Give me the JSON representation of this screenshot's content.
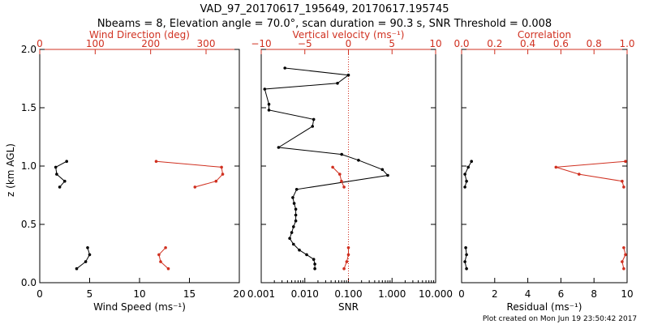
{
  "header": {
    "title": "VAD_97_20170617_195649, 20170617.195745",
    "subtitle": "Nbeams = 8, Elevation angle = 70.0°, scan duration = 90.3 s, SNR Threshold = 0.008"
  },
  "footer": {
    "note": "Plot created on Mon Jun 19 23:50:42 2017"
  },
  "colors": {
    "primary": "#000000",
    "secondary": "#d03020"
  },
  "chart_data": [
    {
      "type": "line",
      "bottom_axis": {
        "label": "Wind Speed (ms⁻¹)",
        "range": [
          0,
          20
        ],
        "ticks": [
          0,
          5,
          10,
          15,
          20
        ],
        "tick_labels": [
          "0",
          "5",
          "10",
          "15",
          "20"
        ]
      },
      "top_axis": {
        "label": "Wind Direction (deg)",
        "range": [
          0,
          360
        ],
        "ticks": [
          0,
          100,
          200,
          300
        ],
        "tick_labels": [
          "0",
          "100",
          "200",
          "300"
        ]
      },
      "y_axis": {
        "label": "z (km AGL)",
        "range": [
          0,
          2
        ],
        "ticks": [
          0,
          0.5,
          1.0,
          1.5,
          2.0
        ],
        "tick_labels": [
          "0.0",
          "0.5",
          "1.0",
          "1.5",
          "2.0"
        ]
      },
      "series": [
        {
          "axis": "bottom",
          "color": "#000000",
          "segments": [
            [
              [
                3.7,
                0.12
              ],
              [
                4.6,
                0.18
              ],
              [
                5.0,
                0.24
              ],
              [
                4.8,
                0.3
              ]
            ],
            [
              [
                2.0,
                0.82
              ],
              [
                2.5,
                0.87
              ],
              [
                1.7,
                0.93
              ],
              [
                1.6,
                0.99
              ],
              [
                2.7,
                1.04
              ]
            ]
          ]
        },
        {
          "axis": "top",
          "color": "#d03020",
          "segments": [
            [
              [
                232,
                0.12
              ],
              [
                218,
                0.18
              ],
              [
                215,
                0.24
              ],
              [
                227,
                0.3
              ]
            ],
            [
              [
                280,
                0.82
              ],
              [
                318,
                0.87
              ],
              [
                330,
                0.93
              ],
              [
                328,
                0.99
              ],
              [
                210,
                1.04
              ]
            ]
          ]
        }
      ]
    },
    {
      "type": "line",
      "bottom_axis": {
        "label": "SNR",
        "scale": "log",
        "range": [
          0.001,
          10
        ],
        "ticks": [
          0.001,
          0.01,
          0.1,
          1,
          10
        ],
        "tick_labels": [
          "0.001",
          "0.010",
          "0.100",
          "1.000",
          "10.000"
        ]
      },
      "top_axis": {
        "label": "Vertical velocity (ms⁻¹)",
        "range": [
          -10,
          10
        ],
        "ticks": [
          -10,
          -5,
          0,
          5,
          10
        ],
        "tick_labels": [
          "−10",
          "−5",
          "0",
          "5",
          "10"
        ]
      },
      "y_axis": {
        "range": [
          0,
          2
        ],
        "ticks": [
          0,
          0.5,
          1.0,
          1.5,
          2.0
        ]
      },
      "zero_line": {
        "axis": "top",
        "value": 0,
        "color": "#d03020",
        "style": "dotted"
      },
      "series": [
        {
          "axis": "bottom",
          "color": "#000000",
          "segments": [
            [
              [
                0.017,
                0.12
              ],
              [
                0.017,
                0.16
              ],
              [
                0.016,
                0.2
              ],
              [
                0.011,
                0.24
              ],
              [
                0.0075,
                0.28
              ],
              [
                0.0055,
                0.33
              ],
              [
                0.0045,
                0.38
              ],
              [
                0.005,
                0.43
              ],
              [
                0.0055,
                0.48
              ],
              [
                0.0062,
                0.53
              ],
              [
                0.0062,
                0.58
              ],
              [
                0.0062,
                0.63
              ],
              [
                0.0057,
                0.68
              ],
              [
                0.0053,
                0.73
              ],
              [
                0.0065,
                0.8
              ],
              [
                0.8,
                0.92
              ],
              [
                0.6,
                0.97
              ],
              [
                0.17,
                1.05
              ],
              [
                0.07,
                1.1
              ],
              [
                0.0025,
                1.16
              ],
              [
                0.015,
                1.34
              ],
              [
                0.016,
                1.4
              ],
              [
                0.0015,
                1.48
              ],
              [
                0.0015,
                1.53
              ],
              [
                0.0012,
                1.66
              ],
              [
                0.056,
                1.71
              ],
              [
                0.1,
                1.78
              ],
              [
                0.0035,
                1.84
              ]
            ]
          ]
        },
        {
          "axis": "top",
          "color": "#d03020",
          "segments": [
            [
              [
                -0.5,
                0.12
              ],
              [
                -0.2,
                0.18
              ],
              [
                0.0,
                0.24
              ],
              [
                0.0,
                0.3
              ]
            ],
            [
              [
                -0.5,
                0.82
              ],
              [
                -0.8,
                0.87
              ],
              [
                -1.0,
                0.93
              ],
              [
                -1.8,
                0.99
              ]
            ]
          ]
        }
      ]
    },
    {
      "type": "line",
      "bottom_axis": {
        "label": "Residual (ms⁻¹)",
        "range": [
          0,
          10
        ],
        "ticks": [
          0,
          2,
          4,
          6,
          8,
          10
        ],
        "tick_labels": [
          "0",
          "2",
          "4",
          "6",
          "8",
          "10"
        ]
      },
      "top_axis": {
        "label": "Correlation",
        "range": [
          0,
          1
        ],
        "ticks": [
          0,
          0.2,
          0.4,
          0.6,
          0.8,
          1.0
        ],
        "tick_labels": [
          "0.0",
          "0.2",
          "0.4",
          "0.6",
          "0.8",
          "1.0"
        ]
      },
      "y_axis": {
        "range": [
          0,
          2
        ],
        "ticks": [
          0,
          0.5,
          1.0,
          1.5,
          2.0
        ]
      },
      "series": [
        {
          "axis": "bottom",
          "color": "#000000",
          "segments": [
            [
              [
                0.3,
                0.12
              ],
              [
                0.2,
                0.18
              ],
              [
                0.3,
                0.24
              ],
              [
                0.25,
                0.3
              ]
            ],
            [
              [
                0.2,
                0.82
              ],
              [
                0.3,
                0.87
              ],
              [
                0.2,
                0.93
              ],
              [
                0.4,
                0.99
              ],
              [
                0.6,
                1.04
              ]
            ]
          ]
        },
        {
          "axis": "top",
          "color": "#d03020",
          "segments": [
            [
              [
                0.98,
                0.12
              ],
              [
                0.97,
                0.18
              ],
              [
                0.99,
                0.24
              ],
              [
                0.98,
                0.3
              ]
            ],
            [
              [
                0.98,
                0.82
              ],
              [
                0.97,
                0.87
              ],
              [
                0.71,
                0.93
              ],
              [
                0.57,
                0.99
              ],
              [
                0.99,
                1.04
              ]
            ]
          ]
        }
      ]
    }
  ]
}
